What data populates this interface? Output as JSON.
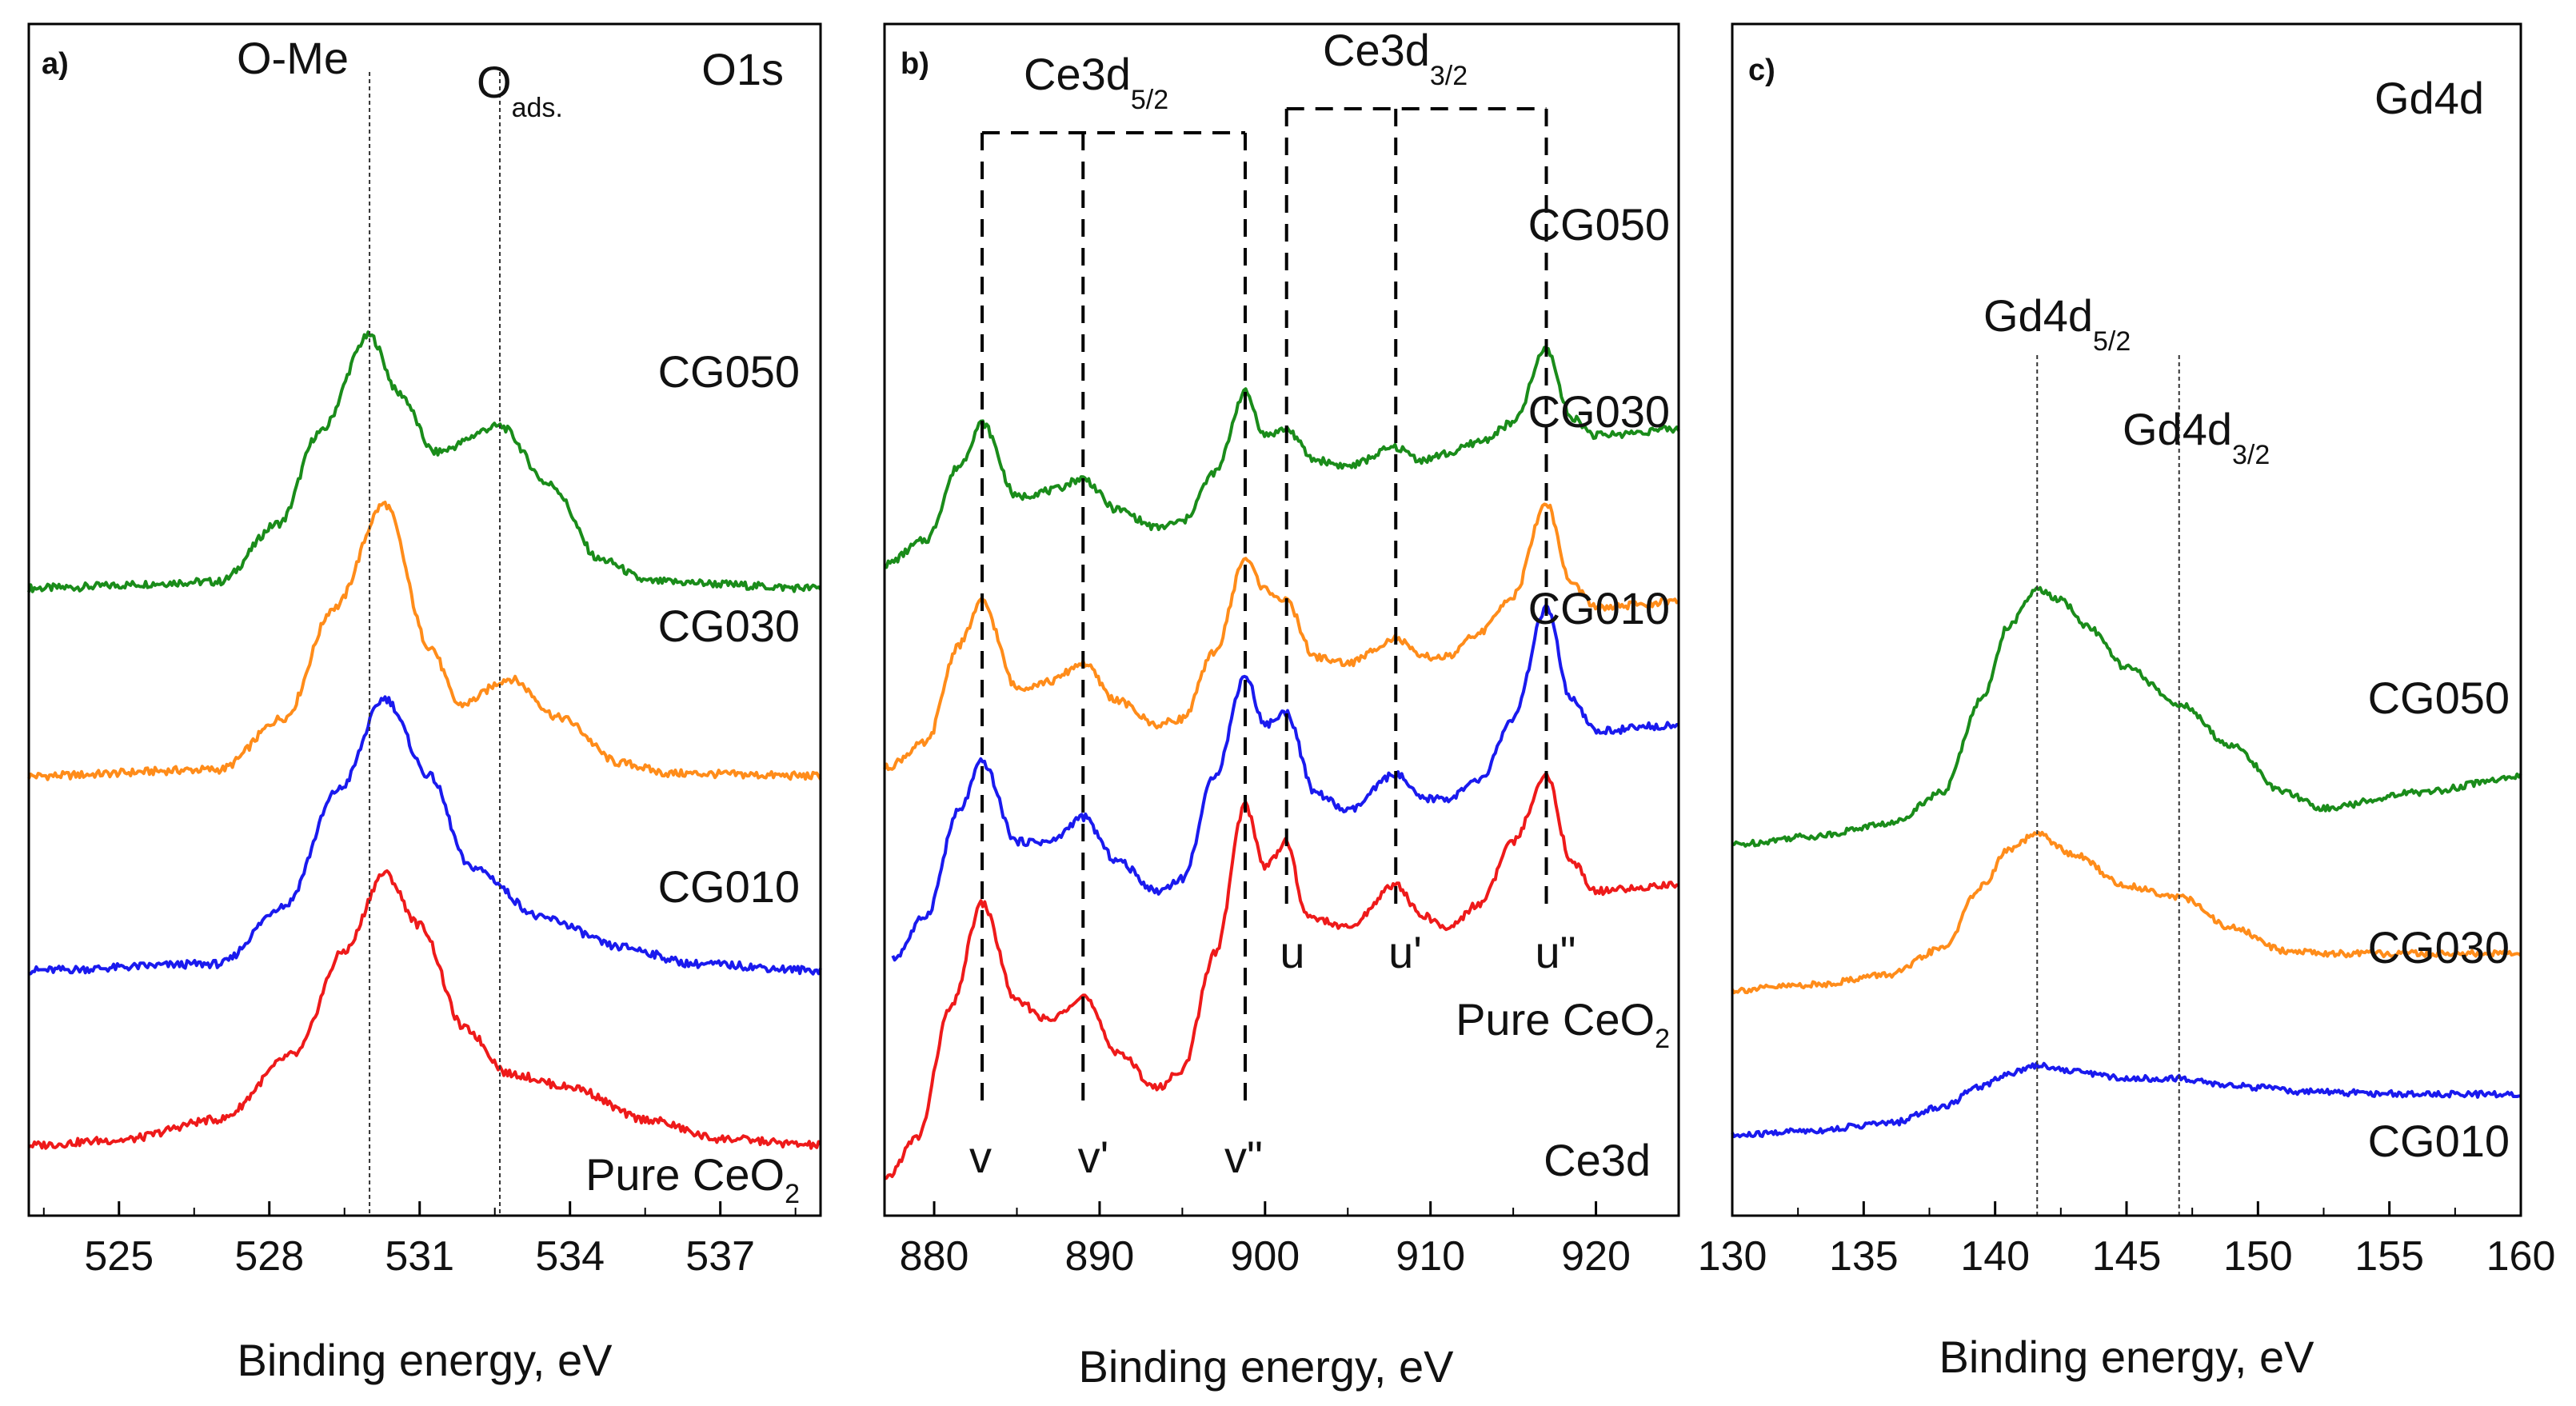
{
  "chart_data": [
    {
      "type": "line",
      "panel_label": "a)",
      "corner_label": "O1s",
      "xlabel": "Binding energy, eV",
      "ylabel": "",
      "xlim": [
        523.2,
        539.0
      ],
      "xticks": [
        525,
        528,
        531,
        534,
        537
      ],
      "xtick_labels": [
        "525",
        "528",
        "531",
        "534",
        "537"
      ],
      "y_units": "arbitrary (normalized intensity; each spectrum stacked with its own baseline offset)",
      "grid": false,
      "legend": "none (each curve labelled directly)",
      "ref_lines": [
        {
          "x": 530.0,
          "label": "O-Me"
        },
        {
          "x": 532.6,
          "label_main": "O",
          "label_sub": "ads."
        }
      ],
      "series": [
        {
          "name": "CG050",
          "color": "#1a8c1a",
          "offset": 4.3,
          "x": [
            523.2,
            527.0,
            528.2,
            529.0,
            530.0,
            530.6,
            531.3,
            532.6,
            533.6,
            534.6,
            535.6,
            539.0
          ],
          "y": [
            0.0,
            0.05,
            0.5,
            1.2,
            1.95,
            1.5,
            1.05,
            1.25,
            0.8,
            0.22,
            0.05,
            0.0
          ]
        },
        {
          "name": "CG030",
          "color": "#ff8c1a",
          "offset": 2.85,
          "x": [
            523.2,
            527.0,
            528.3,
            529.3,
            530.3,
            531.2,
            531.8,
            532.8,
            533.8,
            535.0,
            536.0,
            539.0
          ],
          "y": [
            0.0,
            0.05,
            0.45,
            1.3,
            2.1,
            1.0,
            0.55,
            0.75,
            0.45,
            0.1,
            0.02,
            0.0
          ]
        },
        {
          "name": "CG010",
          "color": "#1a1aee",
          "offset": 1.35,
          "x": [
            523.2,
            527.0,
            528.3,
            529.4,
            530.3,
            531.2,
            532.0,
            533.5,
            535.0,
            536.5,
            539.0
          ],
          "y": [
            0.0,
            0.05,
            0.5,
            1.4,
            2.1,
            1.5,
            0.8,
            0.4,
            0.18,
            0.05,
            0.0
          ]
        },
        {
          "name": "Pure CeO2",
          "color": "#ee1a1a",
          "offset": 0.0,
          "x": [
            523.2,
            525.0,
            527.0,
            528.5,
            529.5,
            530.3,
            531.0,
            531.9,
            532.8,
            534.0,
            535.5,
            537.0,
            539.0
          ],
          "y": [
            0.0,
            0.04,
            0.2,
            0.7,
            1.5,
            2.1,
            1.7,
            0.9,
            0.55,
            0.45,
            0.2,
            0.05,
            0.0
          ]
        }
      ],
      "curve_labels": [
        "CG050",
        "CG030",
        "CG010",
        "Pure CeO2"
      ]
    },
    {
      "type": "line",
      "panel_label": "b)",
      "corner_label": "Ce3d",
      "xlabel": "Binding energy, eV",
      "ylabel": "",
      "xlim": [
        877,
        925
      ],
      "xticks": [
        880,
        890,
        900,
        910,
        920
      ],
      "xtick_labels": [
        "880",
        "890",
        "900",
        "910",
        "920"
      ],
      "y_units": "arbitrary (normalized intensity; stacked)",
      "grid": false,
      "legend": "none (each curve labelled directly)",
      "peak_lines": [
        {
          "x": 882.9,
          "label": "v"
        },
        {
          "x": 889.0,
          "label": "v'"
        },
        {
          "x": 898.8,
          "label": "v\""
        },
        {
          "x": 901.3,
          "label": "u"
        },
        {
          "x": 907.9,
          "label": "u'"
        },
        {
          "x": 917.0,
          "label": "u\""
        }
      ],
      "group_brackets": [
        {
          "label_main": "Ce3d",
          "label_sub": "5/2",
          "from": 882.9,
          "to": 898.8
        },
        {
          "label_main": "Ce3d",
          "label_sub": "3/2",
          "from": 901.3,
          "to": 917.0
        }
      ],
      "series": [
        {
          "name": "CG050",
          "color": "#1a8c1a",
          "offset": 5.0,
          "x": [
            877,
            879.5,
            881.5,
            882.9,
            885.0,
            887.0,
            889.0,
            891.0,
            893.5,
            895.0,
            897.0,
            898.8,
            900.0,
            901.3,
            903.0,
            905.0,
            907.9,
            909.5,
            911.0,
            913.0,
            915.0,
            917.0,
            918.5,
            920.0,
            925.0
          ],
          "y": [
            0.0,
            0.2,
            0.8,
            1.15,
            0.55,
            0.6,
            0.7,
            0.45,
            0.3,
            0.35,
            0.75,
            1.4,
            1.05,
            1.1,
            0.85,
            0.8,
            0.95,
            0.85,
            0.9,
            1.0,
            1.15,
            1.75,
            1.2,
            1.05,
            1.1
          ]
        },
        {
          "name": "CG030",
          "color": "#ff8c1a",
          "offset": 3.35,
          "x": [
            877,
            879.5,
            881.5,
            882.9,
            885.0,
            887.0,
            889.0,
            891.0,
            893.5,
            895.0,
            897.0,
            898.8,
            900.0,
            901.3,
            903.0,
            905.0,
            907.9,
            909.5,
            911.0,
            913.0,
            915.0,
            917.0,
            918.5,
            920.0,
            925.0
          ],
          "y": [
            0.0,
            0.2,
            1.0,
            1.35,
            0.65,
            0.7,
            0.85,
            0.55,
            0.35,
            0.4,
            0.95,
            1.7,
            1.45,
            1.35,
            0.9,
            0.85,
            1.05,
            0.9,
            0.9,
            1.1,
            1.4,
            2.15,
            1.5,
            1.3,
            1.35
          ]
        },
        {
          "name": "CG010",
          "color": "#1a1aee",
          "offset": 1.8,
          "x": [
            877.5,
            879.5,
            881.5,
            882.9,
            885.0,
            887.0,
            889.0,
            891.0,
            893.5,
            895.0,
            897.0,
            898.8,
            900.0,
            901.3,
            903.0,
            905.0,
            907.9,
            909.5,
            911.0,
            913.0,
            915.0,
            917.0,
            918.5,
            920.0,
            925.0
          ],
          "y": [
            0.0,
            0.35,
            1.2,
            1.6,
            0.95,
            0.95,
            1.15,
            0.8,
            0.55,
            0.65,
            1.5,
            2.3,
            1.9,
            2.0,
            1.35,
            1.2,
            1.5,
            1.3,
            1.3,
            1.45,
            1.95,
            2.85,
            2.1,
            1.85,
            1.9
          ]
        },
        {
          "name": "Pure CeO2",
          "color": "#ee1a1a",
          "offset": 0.0,
          "x": [
            877,
            879.0,
            881.0,
            882.9,
            885.0,
            887.0,
            889.0,
            891.0,
            893.5,
            895.0,
            897.0,
            898.8,
            900.0,
            901.3,
            902.5,
            905.0,
            907.9,
            909.5,
            911.0,
            913.0,
            915.0,
            917.0,
            918.5,
            920.0,
            925.0
          ],
          "y": [
            0.0,
            0.35,
            1.4,
            2.25,
            1.45,
            1.3,
            1.5,
            1.05,
            0.75,
            0.9,
            1.85,
            3.05,
            2.55,
            2.75,
            2.15,
            2.05,
            2.4,
            2.15,
            2.05,
            2.25,
            2.75,
            3.3,
            2.6,
            2.35,
            2.4
          ]
        }
      ],
      "curve_labels": [
        "CG050",
        "CG030",
        "CG010",
        "Pure CeO2"
      ]
    },
    {
      "type": "line",
      "panel_label": "c)",
      "corner_label": "Gd4d",
      "xlabel": "Binding energy, eV",
      "ylabel": "",
      "xlim": [
        130,
        160
      ],
      "xticks": [
        130,
        135,
        140,
        145,
        150,
        155,
        160
      ],
      "xtick_labels": [
        "130",
        "135",
        "140",
        "145",
        "150",
        "155",
        "160"
      ],
      "y_units": "arbitrary (normalized intensity; stacked)",
      "grid": false,
      "legend": "none (each curve labelled directly)",
      "ref_lines": [
        {
          "x": 141.6,
          "label_main": "Gd4d",
          "label_sub": "5/2"
        },
        {
          "x": 147.0,
          "label_main": "Gd4d",
          "label_sub": "3/2"
        }
      ],
      "series": [
        {
          "name": "CG050",
          "color": "#1a8c1a",
          "offset": 2.8,
          "x": [
            130,
            133,
            136,
            138,
            139.5,
            140.5,
            141.6,
            142.5,
            143.5,
            145.0,
            147.0,
            149.0,
            151.0,
            152.5,
            156.0,
            160.0
          ],
          "y": [
            0.0,
            0.08,
            0.2,
            0.5,
            1.4,
            2.1,
            2.45,
            2.35,
            2.1,
            1.7,
            1.35,
            0.95,
            0.5,
            0.35,
            0.5,
            0.65
          ]
        },
        {
          "name": "CG030",
          "color": "#ff8c1a",
          "offset": 1.4,
          "x": [
            130,
            133,
            136,
            138,
            139.5,
            140.5,
            141.6,
            143.0,
            145.0,
            147.0,
            149.0,
            151.0,
            153.0,
            156.0,
            160.0
          ],
          "y": [
            0.0,
            0.05,
            0.15,
            0.4,
            1.0,
            1.35,
            1.5,
            1.3,
            1.0,
            0.9,
            0.6,
            0.38,
            0.35,
            0.35,
            0.35
          ]
        },
        {
          "name": "CG010",
          "color": "#1a1aee",
          "offset": 0.0,
          "x": [
            130,
            133,
            136,
            138,
            139.5,
            140.5,
            141.6,
            143.0,
            145.0,
            147.0,
            149.0,
            152.0,
            156.0,
            160.0
          ],
          "y": [
            0.0,
            0.05,
            0.12,
            0.28,
            0.48,
            0.6,
            0.68,
            0.62,
            0.55,
            0.55,
            0.48,
            0.42,
            0.4,
            0.4
          ]
        }
      ],
      "curve_labels": [
        "CG050",
        "CG030",
        "CG010"
      ]
    }
  ]
}
